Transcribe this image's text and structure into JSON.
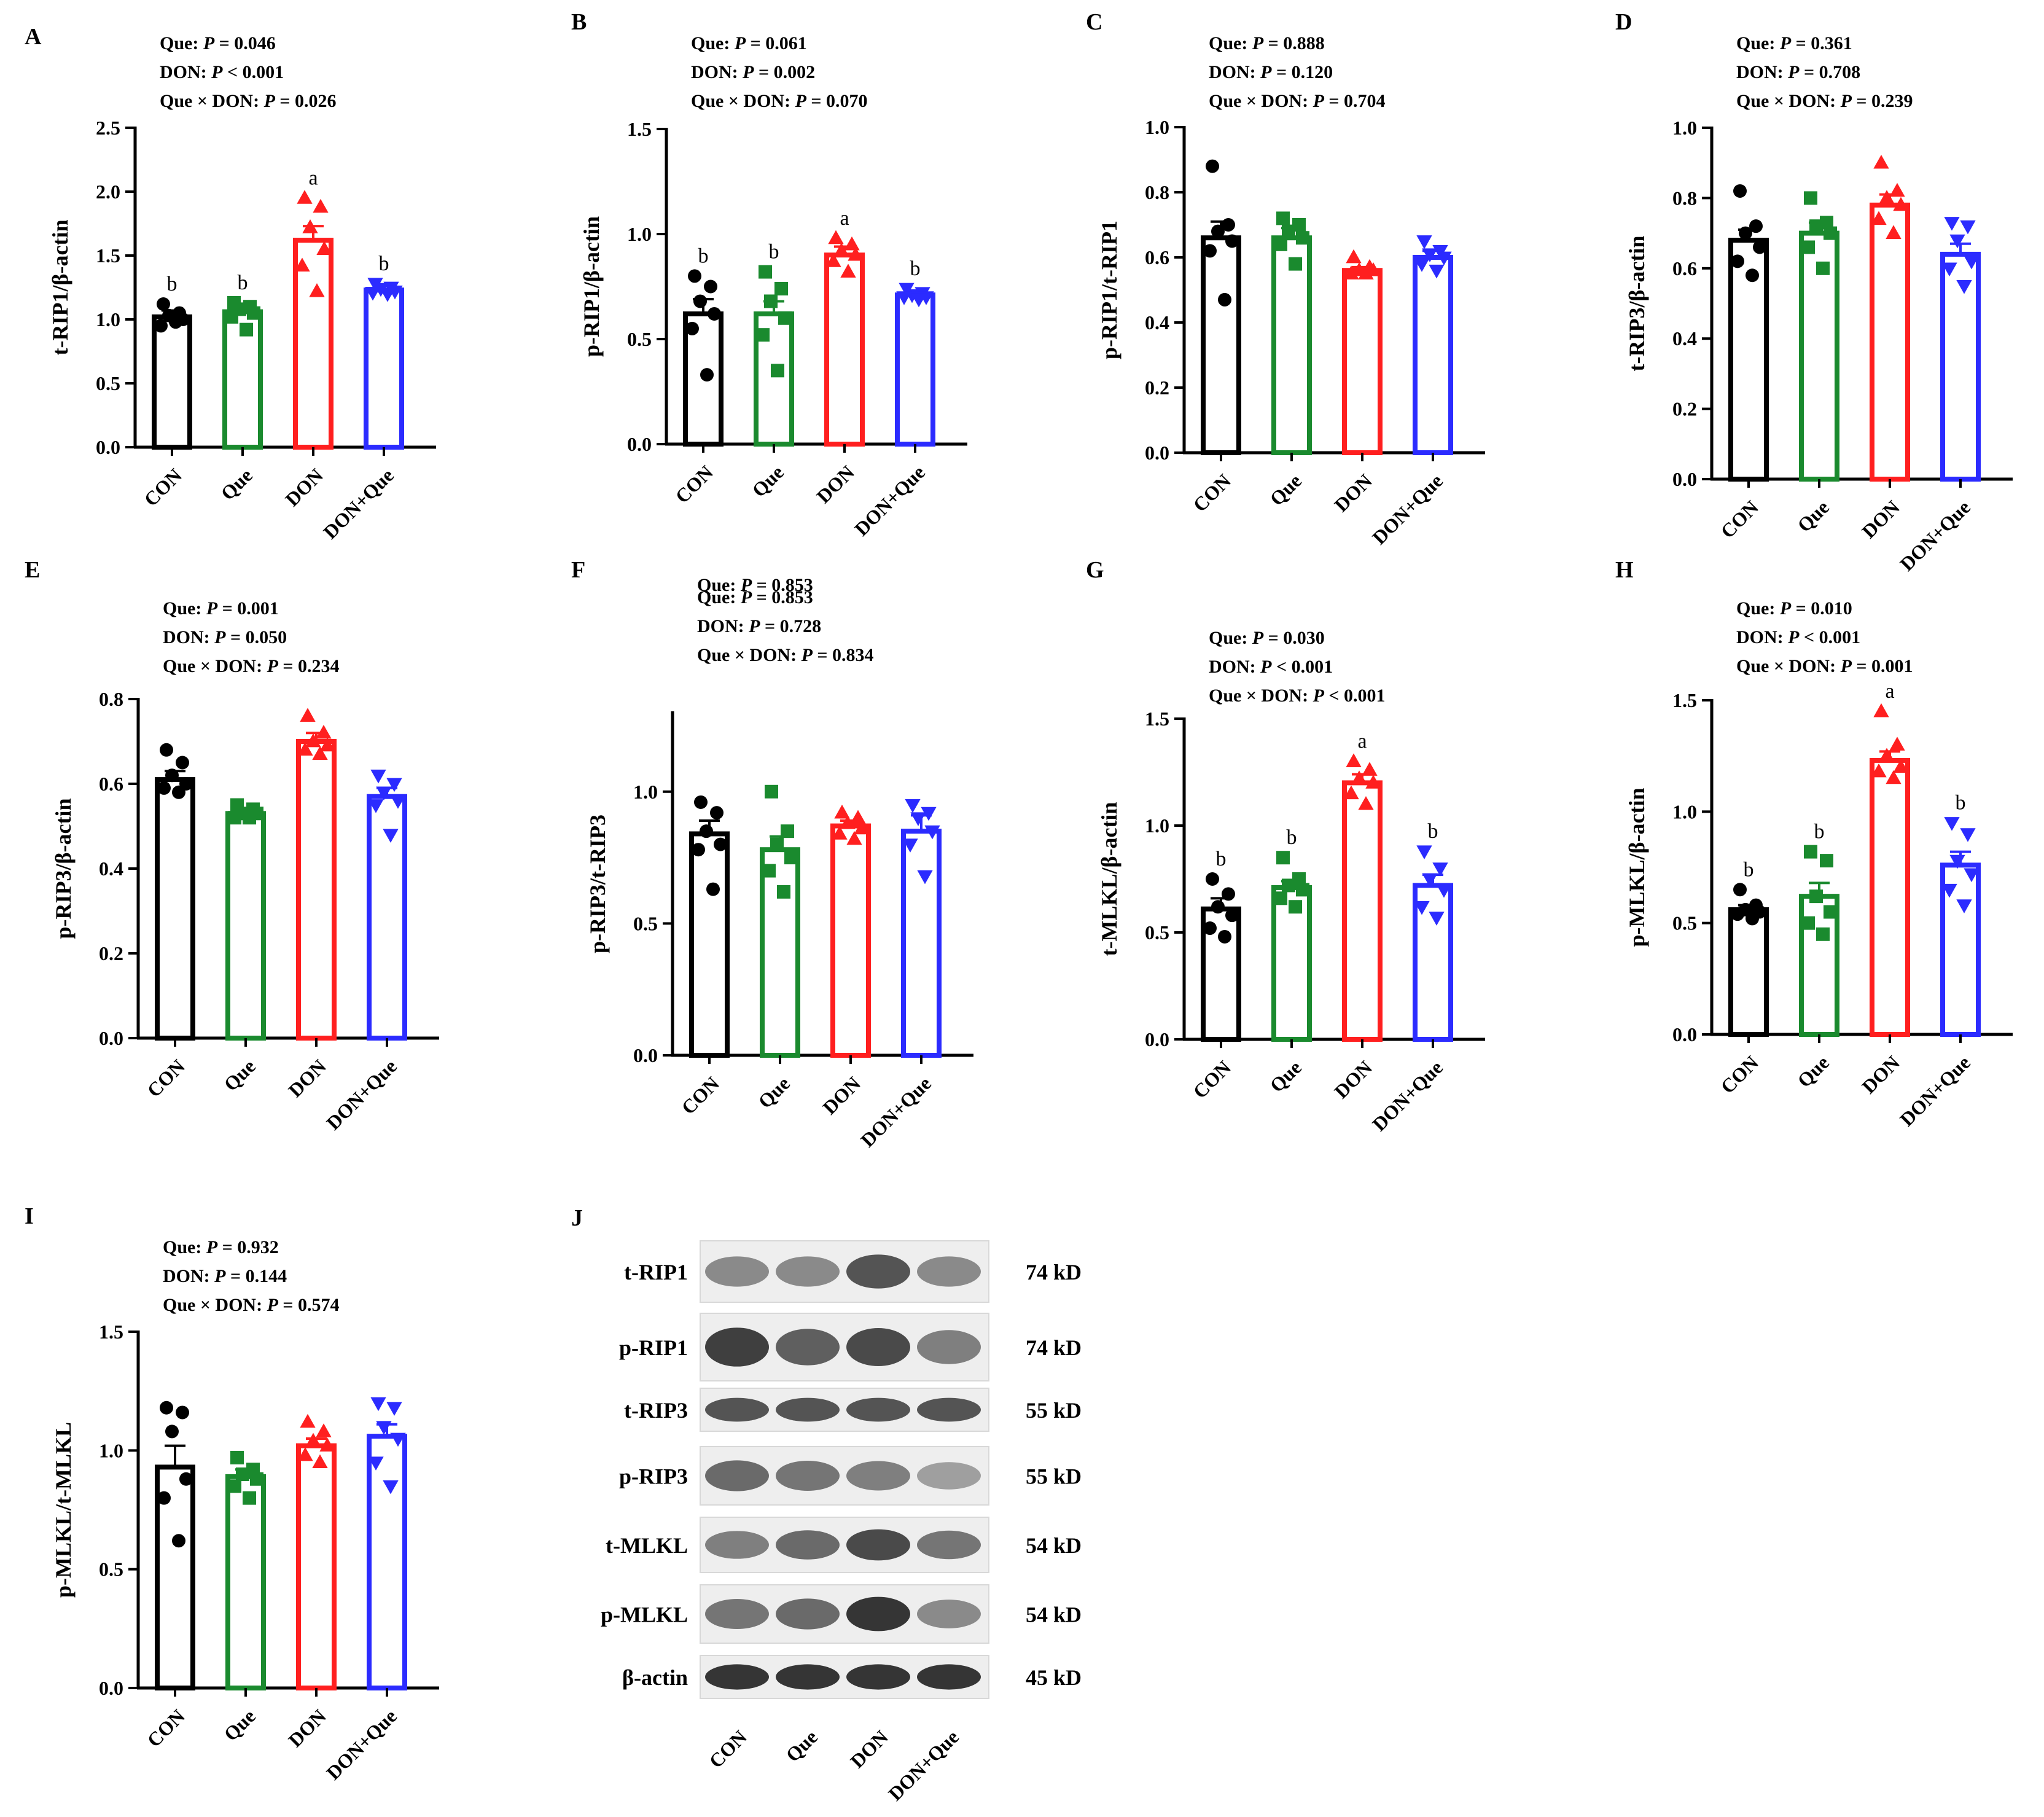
{
  "figure": {
    "groups": [
      "CON",
      "Que",
      "DON",
      "DON+Que"
    ],
    "group_colors": [
      "#000000",
      "#1a8a2e",
      "#ff1f1f",
      "#2b2bff"
    ],
    "group_markers": [
      "circle",
      "square",
      "triangle-up",
      "triangle-down"
    ]
  },
  "chart_data": [
    {
      "id": "A",
      "type": "bar",
      "ylabel": "t-RIP1/β-actin",
      "ylim": [
        0,
        2.5
      ],
      "yticks": [
        "0.0",
        "0.5",
        "1.0",
        "1.5",
        "2.0",
        "2.5"
      ],
      "ytick_values": [
        0,
        0.5,
        1.0,
        1.5,
        2.0,
        2.5
      ],
      "categories": [
        "CON",
        "Que",
        "DON",
        "DON+Que"
      ],
      "values": [
        1.02,
        1.06,
        1.62,
        1.23
      ],
      "sem": [
        0.05,
        0.05,
        0.11,
        0.04
      ],
      "letters": [
        "b",
        "b",
        "a",
        "b"
      ],
      "points": [
        [
          1.12,
          1.05,
          1.03,
          1.0,
          0.95,
          0.98
        ],
        [
          1.13,
          1.1,
          1.08,
          1.05,
          1.02,
          0.92
        ],
        [
          1.95,
          1.88,
          1.72,
          1.55,
          1.42,
          1.22
        ],
        [
          1.28,
          1.25,
          1.24,
          1.22,
          1.21,
          1.2
        ]
      ],
      "stats": [
        {
          "prefix": "Que: ",
          "p": "P",
          "rest": " = 0.046"
        },
        {
          "prefix": "DON:  ",
          "p": "P",
          "rest": "  < 0.001"
        },
        {
          "prefix": "Que × DON: ",
          "p": "P",
          "rest": "  = 0.026"
        }
      ]
    },
    {
      "id": "B",
      "type": "bar",
      "ylabel": "p-RIP1/β-actin",
      "ylim": [
        0,
        1.5
      ],
      "yticks": [
        "0.0",
        "0.5",
        "1.0",
        "1.5"
      ],
      "ytick_values": [
        0,
        0.5,
        1.0,
        1.5
      ],
      "categories": [
        "CON",
        "Que",
        "DON",
        "DON+Que"
      ],
      "values": [
        0.62,
        0.62,
        0.9,
        0.71
      ],
      "sem": [
        0.07,
        0.06,
        0.04,
        0.02
      ],
      "letters": [
        "b",
        "b",
        "a",
        "b"
      ],
      "points": [
        [
          0.8,
          0.75,
          0.68,
          0.62,
          0.55,
          0.33
        ],
        [
          0.82,
          0.74,
          0.68,
          0.6,
          0.52,
          0.35
        ],
        [
          0.98,
          0.95,
          0.92,
          0.9,
          0.87,
          0.82
        ],
        [
          0.74,
          0.72,
          0.71,
          0.7,
          0.7,
          0.69
        ]
      ],
      "stats": [
        {
          "prefix": "Que: ",
          "p": "P",
          "rest": " = 0.061"
        },
        {
          "prefix": "DON:  ",
          "p": "P",
          "rest": "  = 0.002"
        },
        {
          "prefix": "Que × DON: ",
          "p": "P",
          "rest": "  = 0.070"
        }
      ]
    },
    {
      "id": "C",
      "type": "bar",
      "ylabel": "p-RIP1/t-RIP1",
      "ylim": [
        0,
        1.0
      ],
      "yticks": [
        "0.0",
        "0.2",
        "0.4",
        "0.6",
        "0.8",
        "1.0"
      ],
      "ytick_values": [
        0,
        0.2,
        0.4,
        0.6,
        0.8,
        1.0
      ],
      "categories": [
        "CON",
        "Que",
        "DON",
        "DON+Que"
      ],
      "values": [
        0.66,
        0.66,
        0.56,
        0.6
      ],
      "sem": [
        0.05,
        0.03,
        0.01,
        0.02
      ],
      "letters": [
        "",
        "",
        "",
        ""
      ],
      "points": [
        [
          0.88,
          0.7,
          0.68,
          0.65,
          0.62,
          0.47
        ],
        [
          0.72,
          0.7,
          0.68,
          0.66,
          0.64,
          0.58
        ],
        [
          0.6,
          0.57,
          0.56,
          0.56,
          0.55,
          0.55
        ],
        [
          0.65,
          0.62,
          0.61,
          0.6,
          0.58,
          0.56
        ]
      ],
      "stats": [
        {
          "prefix": "Que: ",
          "p": "P",
          "rest": " = 0.888"
        },
        {
          "prefix": "DON:  ",
          "p": "P",
          "rest": "  = 0.120"
        },
        {
          "prefix": "Que × DON: ",
          "p": "P",
          "rest": "  = 0.704"
        }
      ]
    },
    {
      "id": "D",
      "type": "bar",
      "ylabel": "t-RIP3/β-actin",
      "ylim": [
        0,
        1.0
      ],
      "yticks": [
        "0.0",
        "0.2",
        "0.4",
        "0.6",
        "0.8",
        "1.0"
      ],
      "ytick_values": [
        0,
        0.2,
        0.4,
        0.6,
        0.8,
        1.0
      ],
      "categories": [
        "CON",
        "Que",
        "DON",
        "DON+Que"
      ],
      "values": [
        0.68,
        0.7,
        0.78,
        0.64
      ],
      "sem": [
        0.03,
        0.03,
        0.03,
        0.03
      ],
      "letters": [
        "",
        "",
        "",
        ""
      ],
      "points": [
        [
          0.82,
          0.72,
          0.7,
          0.66,
          0.62,
          0.58
        ],
        [
          0.8,
          0.73,
          0.72,
          0.7,
          0.66,
          0.6
        ],
        [
          0.9,
          0.82,
          0.8,
          0.78,
          0.74,
          0.7
        ],
        [
          0.73,
          0.72,
          0.68,
          0.62,
          0.6,
          0.55
        ]
      ],
      "stats": [
        {
          "prefix": "Que: ",
          "p": "P",
          "rest": " = 0.361"
        },
        {
          "prefix": "DON:  ",
          "p": "P",
          "rest": "  = 0.708"
        },
        {
          "prefix": "Que × DON: ",
          "p": "P",
          "rest": "  = 0.239"
        }
      ]
    },
    {
      "id": "E",
      "type": "bar",
      "ylabel": "p-RIP3/β-actin",
      "ylim": [
        0,
        0.8
      ],
      "yticks": [
        "0.0",
        "0.2",
        "0.4",
        "0.6",
        "0.8"
      ],
      "ytick_values": [
        0,
        0.2,
        0.4,
        0.6,
        0.8
      ],
      "categories": [
        "CON",
        "Que",
        "DON",
        "DON+Que"
      ],
      "values": [
        0.61,
        0.53,
        0.7,
        0.57
      ],
      "sem": [
        0.02,
        0.01,
        0.02,
        0.02
      ],
      "letters": [
        "",
        "",
        "",
        ""
      ],
      "points": [
        [
          0.68,
          0.65,
          0.62,
          0.6,
          0.59,
          0.58
        ],
        [
          0.55,
          0.54,
          0.53,
          0.53,
          0.52,
          0.52
        ],
        [
          0.76,
          0.72,
          0.7,
          0.69,
          0.68,
          0.67
        ],
        [
          0.62,
          0.6,
          0.58,
          0.56,
          0.55,
          0.48
        ]
      ],
      "stats": [
        {
          "prefix": "Que: ",
          "p": "P",
          "rest": " = 0.001"
        },
        {
          "prefix": "DON:  ",
          "p": "P",
          "rest": "  = 0.050"
        },
        {
          "prefix": "Que × DON: ",
          "p": "P",
          "rest": "  = 0.234"
        }
      ]
    },
    {
      "id": "F",
      "type": "bar",
      "ylabel": "p-RIP3/t-RIP3",
      "ylim": [
        0,
        1.3
      ],
      "yticks": [
        "0.0",
        "0.5",
        "1.0"
      ],
      "ytick_values": [
        0,
        0.5,
        1.0
      ],
      "categories": [
        "CON",
        "Que",
        "DON",
        "DON+Que"
      ],
      "values": [
        0.84,
        0.78,
        0.87,
        0.85
      ],
      "sem": [
        0.05,
        0.05,
        0.02,
        0.06
      ],
      "letters": [
        "",
        "",
        "",
        ""
      ],
      "points": [
        [
          0.96,
          0.92,
          0.85,
          0.8,
          0.78,
          0.63
        ],
        [
          1.0,
          0.85,
          0.8,
          0.75,
          0.7,
          0.62
        ],
        [
          0.92,
          0.9,
          0.88,
          0.86,
          0.84,
          0.82
        ],
        [
          0.95,
          0.92,
          0.9,
          0.85,
          0.8,
          0.68
        ]
      ],
      "stats_overlap": {
        "prefix": "Que: ",
        "p": "P",
        "rest": " = 0.853"
      },
      "stats": [
        {
          "prefix": "Que: ",
          "p": "P",
          "rest": " = 0.853"
        },
        {
          "prefix": "DON:  ",
          "p": "P",
          "rest": "  = 0.728"
        },
        {
          "prefix": "Que × DON: ",
          "p": "P",
          "rest": "  = 0.834"
        }
      ]
    },
    {
      "id": "G",
      "type": "bar",
      "ylabel": "t-MLKL/β-actin",
      "ylim": [
        0,
        1.5
      ],
      "yticks": [
        "0.0",
        "0.5",
        "1.0",
        "1.5"
      ],
      "ytick_values": [
        0,
        0.5,
        1.0,
        1.5
      ],
      "categories": [
        "CON",
        "Que",
        "DON",
        "DON+Que"
      ],
      "values": [
        0.61,
        0.71,
        1.2,
        0.72
      ],
      "sem": [
        0.05,
        0.03,
        0.04,
        0.05
      ],
      "letters": [
        "b",
        "b",
        "a",
        "b"
      ],
      "points": [
        [
          0.75,
          0.68,
          0.62,
          0.58,
          0.52,
          0.48
        ],
        [
          0.85,
          0.75,
          0.72,
          0.7,
          0.66,
          0.62
        ],
        [
          1.3,
          1.26,
          1.22,
          1.2,
          1.15,
          1.1
        ],
        [
          0.88,
          0.8,
          0.75,
          0.7,
          0.62,
          0.57
        ]
      ],
      "stats": [
        {
          "prefix": "Que: ",
          "p": "P",
          "rest": " = 0.030"
        },
        {
          "prefix": "DON:  ",
          "p": "P",
          "rest": "  < 0.001"
        },
        {
          "prefix": "Que × DON: ",
          "p": "P",
          "rest": "  < 0.001"
        }
      ]
    },
    {
      "id": "H",
      "type": "bar",
      "ylabel": "p-MLKL/β-actin",
      "ylim": [
        0,
        1.5
      ],
      "yticks": [
        "0.0",
        "0.5",
        "1.0",
        "1.5"
      ],
      "ytick_values": [
        0,
        0.5,
        1.0,
        1.5
      ],
      "categories": [
        "CON",
        "Que",
        "DON",
        "DON+Que"
      ],
      "values": [
        0.56,
        0.62,
        1.23,
        0.76
      ],
      "sem": [
        0.02,
        0.06,
        0.04,
        0.06
      ],
      "letters": [
        "b",
        "b",
        "a",
        "b"
      ],
      "points": [
        [
          0.65,
          0.58,
          0.56,
          0.55,
          0.54,
          0.52
        ],
        [
          0.82,
          0.78,
          0.62,
          0.55,
          0.5,
          0.45
        ],
        [
          1.45,
          1.3,
          1.25,
          1.2,
          1.18,
          1.15
        ],
        [
          0.95,
          0.9,
          0.78,
          0.72,
          0.65,
          0.58
        ]
      ],
      "stats": [
        {
          "prefix": "Que: ",
          "p": "P",
          "rest": " = 0.010"
        },
        {
          "prefix": "DON:  ",
          "p": "P",
          "rest": "  < 0.001"
        },
        {
          "prefix": "Que × DON: ",
          "p": "P",
          "rest": "  = 0.001"
        }
      ]
    },
    {
      "id": "I",
      "type": "bar",
      "ylabel": "p-MLKL/t-MLKL",
      "ylim": [
        0,
        1.5
      ],
      "yticks": [
        "0.0",
        "0.5",
        "1.0",
        "1.5"
      ],
      "ytick_values": [
        0,
        0.5,
        1.0,
        1.5
      ],
      "categories": [
        "CON",
        "Que",
        "DON",
        "DON+Que"
      ],
      "values": [
        0.93,
        0.89,
        1.02,
        1.06
      ],
      "sem": [
        0.09,
        0.03,
        0.03,
        0.05
      ],
      "letters": [
        "",
        "",
        "",
        ""
      ],
      "points": [
        [
          1.18,
          1.16,
          1.08,
          0.88,
          0.8,
          0.62
        ],
        [
          0.97,
          0.92,
          0.9,
          0.88,
          0.85,
          0.8
        ],
        [
          1.12,
          1.08,
          1.04,
          1.02,
          0.98,
          0.95
        ],
        [
          1.2,
          1.18,
          1.1,
          1.05,
          0.95,
          0.85
        ]
      ],
      "stats": [
        {
          "prefix": "Que: ",
          "p": "P",
          "rest": " = 0.932"
        },
        {
          "prefix": "DON:  ",
          "p": "P",
          "rest": "  = 0.144"
        },
        {
          "prefix": "Que × DON: ",
          "p": "P",
          "rest": " = 0.574"
        }
      ]
    }
  ],
  "blot": {
    "panel": "J",
    "bands": [
      {
        "name": "t-RIP1",
        "size": "74 kD",
        "intensity": [
          0.55,
          0.55,
          0.8,
          0.55
        ]
      },
      {
        "name": "p-RIP1",
        "size": "74 kD",
        "intensity": [
          0.9,
          0.75,
          0.85,
          0.6
        ]
      },
      {
        "name": "t-RIP3",
        "size": "55 kD",
        "intensity": [
          0.8,
          0.8,
          0.8,
          0.8
        ]
      },
      {
        "name": "p-RIP3",
        "size": "55 kD",
        "intensity": [
          0.7,
          0.65,
          0.6,
          0.45
        ]
      },
      {
        "name": "t-MLKL",
        "size": "54 kD",
        "intensity": [
          0.6,
          0.7,
          0.85,
          0.65
        ]
      },
      {
        "name": "p-MLKL",
        "size": "54 kD",
        "intensity": [
          0.65,
          0.7,
          0.95,
          0.55
        ]
      },
      {
        "name": "β-actin",
        "size": "45 kD",
        "intensity": [
          0.95,
          0.95,
          0.95,
          0.95
        ]
      }
    ],
    "lanes": [
      "CON",
      "Que",
      "DON",
      "DON+Que"
    ]
  }
}
